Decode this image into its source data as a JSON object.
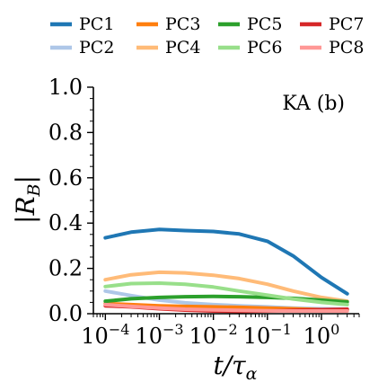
{
  "chart_data": {
    "type": "line",
    "annotation": "KA (b)",
    "xlabel": "t/τ",
    "xlabel_sub": "α",
    "ylabel": "|R",
    "ylabel_sub": "B",
    "ylabel_close": "|",
    "xscale": "log",
    "xlim": [
      6e-05,
      5
    ],
    "ylim": [
      0,
      1
    ],
    "x_ticks": [
      {
        "value": 0.0001,
        "base": "10",
        "exp": "−4"
      },
      {
        "value": 0.001,
        "base": "10",
        "exp": "−3"
      },
      {
        "value": 0.01,
        "base": "10",
        "exp": "−2"
      },
      {
        "value": 0.1,
        "base": "10",
        "exp": "−1"
      },
      {
        "value": 1,
        "base": "10",
        "exp": "0"
      }
    ],
    "y_ticks": [
      {
        "value": 0.0,
        "label": "0.0"
      },
      {
        "value": 0.2,
        "label": "0.2"
      },
      {
        "value": 0.4,
        "label": "0.4"
      },
      {
        "value": 0.6,
        "label": "0.6"
      },
      {
        "value": 0.8,
        "label": "0.8"
      },
      {
        "value": 1.0,
        "label": "1.0"
      }
    ],
    "grid": false,
    "legend_position": "top",
    "series": [
      {
        "name": "PC1",
        "color": "#1f77b4",
        "x": [
          0.0001,
          0.0003,
          0.001,
          0.003,
          0.01,
          0.03,
          0.1,
          0.3,
          1,
          3
        ],
        "values": [
          0.335,
          0.36,
          0.372,
          0.367,
          0.363,
          0.352,
          0.32,
          0.255,
          0.16,
          0.088
        ]
      },
      {
        "name": "PC2",
        "color": "#aec7e8",
        "x": [
          0.0001,
          0.0003,
          0.001,
          0.003,
          0.01,
          0.03,
          0.1,
          0.3,
          1,
          3
        ],
        "values": [
          0.1,
          0.08,
          0.06,
          0.048,
          0.04,
          0.035,
          0.03,
          0.025,
          0.022,
          0.02
        ]
      },
      {
        "name": "PC3",
        "color": "#ff7f0e",
        "x": [
          0.0001,
          0.0003,
          0.001,
          0.003,
          0.01,
          0.03,
          0.1,
          0.3,
          1,
          3
        ],
        "values": [
          0.045,
          0.04,
          0.035,
          0.032,
          0.03,
          0.028,
          0.025,
          0.022,
          0.018,
          0.015
        ]
      },
      {
        "name": "PC4",
        "color": "#ffbb78",
        "x": [
          0.0001,
          0.0003,
          0.001,
          0.003,
          0.01,
          0.03,
          0.1,
          0.3,
          1,
          3
        ],
        "values": [
          0.15,
          0.172,
          0.183,
          0.18,
          0.17,
          0.155,
          0.13,
          0.1,
          0.072,
          0.055
        ]
      },
      {
        "name": "PC5",
        "color": "#2ca02c",
        "x": [
          0.0001,
          0.0003,
          0.001,
          0.003,
          0.01,
          0.03,
          0.1,
          0.3,
          1,
          3
        ],
        "values": [
          0.055,
          0.066,
          0.072,
          0.075,
          0.076,
          0.075,
          0.072,
          0.068,
          0.06,
          0.052
        ]
      },
      {
        "name": "PC6",
        "color": "#98df8a",
        "x": [
          0.0001,
          0.0003,
          0.001,
          0.003,
          0.01,
          0.03,
          0.1,
          0.3,
          1,
          3
        ],
        "values": [
          0.12,
          0.133,
          0.135,
          0.13,
          0.118,
          0.1,
          0.082,
          0.065,
          0.05,
          0.04
        ]
      },
      {
        "name": "PC7",
        "color": "#d62728",
        "x": [
          0.0001,
          0.0003,
          0.001,
          0.003,
          0.01,
          0.03,
          0.1,
          0.3,
          1,
          3
        ],
        "values": [
          0.035,
          0.03,
          0.022,
          0.016,
          0.012,
          0.01,
          0.012,
          0.015,
          0.018,
          0.02
        ]
      },
      {
        "name": "PC8",
        "color": "#ff9896",
        "x": [
          0.0001,
          0.0003,
          0.001,
          0.003,
          0.01,
          0.03,
          0.1,
          0.3,
          1,
          3
        ],
        "values": [
          0.04,
          0.032,
          0.025,
          0.02,
          0.017,
          0.015,
          0.013,
          0.012,
          0.012,
          0.012
        ]
      }
    ]
  }
}
